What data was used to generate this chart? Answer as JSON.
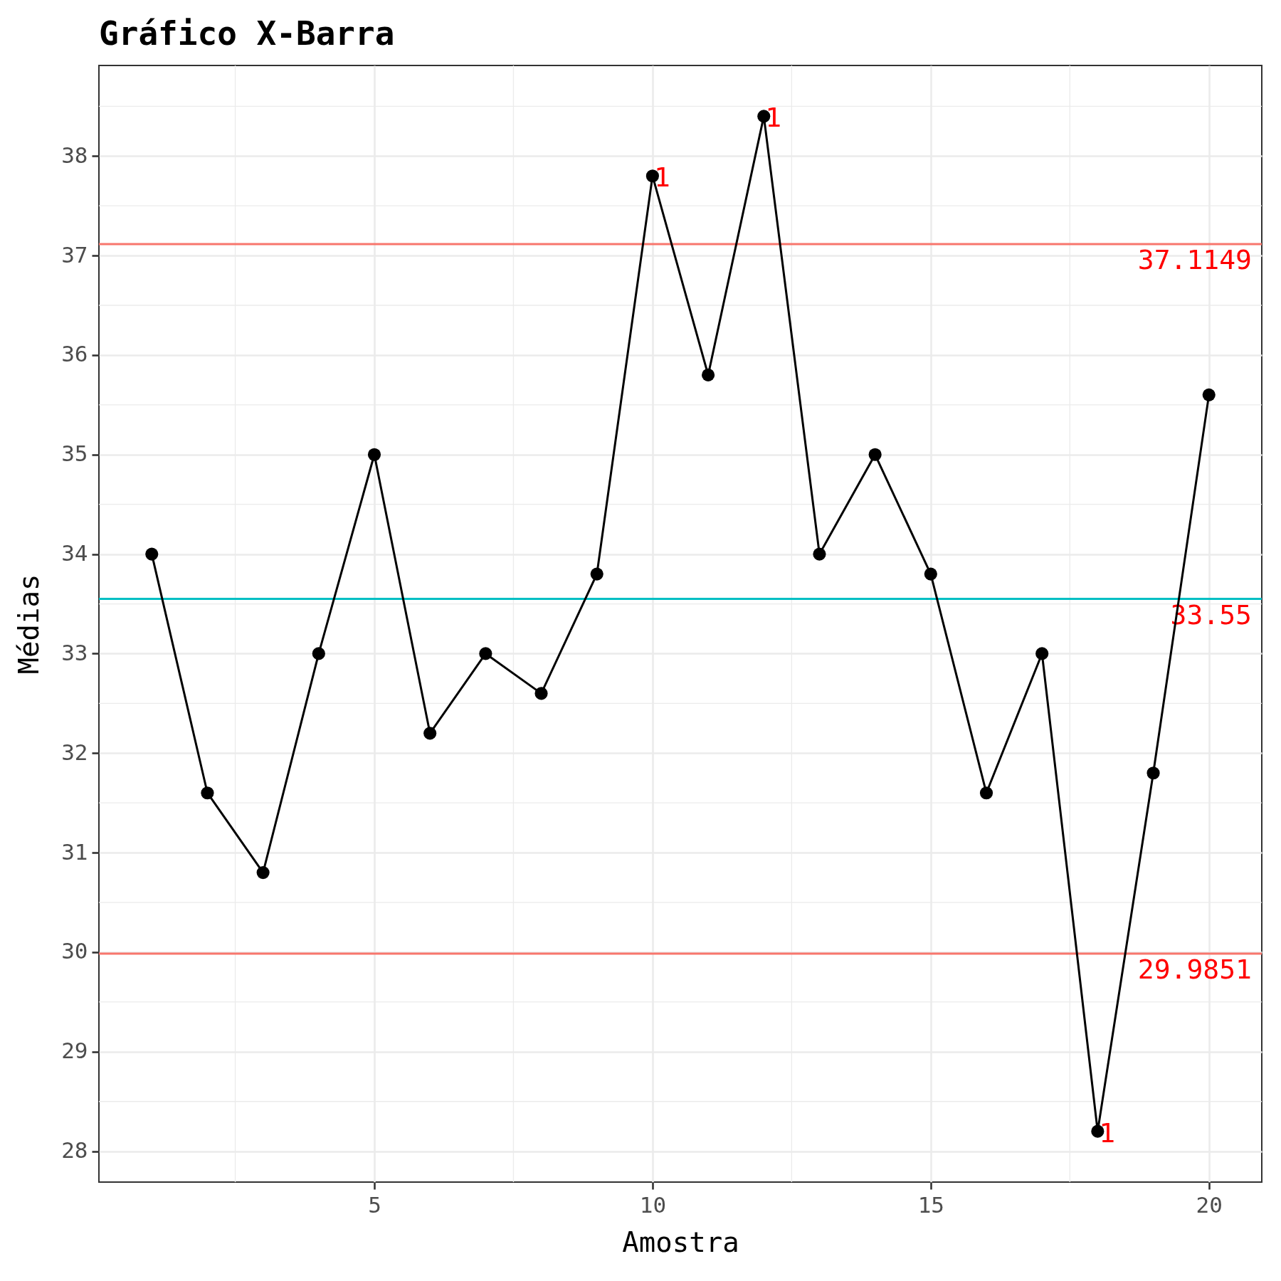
{
  "chart_data": {
    "type": "line",
    "title": "Gráfico X-Barra",
    "xlabel": "Amostra",
    "ylabel": "Médias",
    "x": [
      1,
      2,
      3,
      4,
      5,
      6,
      7,
      8,
      9,
      10,
      11,
      12,
      13,
      14,
      15,
      16,
      17,
      18,
      19,
      20
    ],
    "series": [
      {
        "color": "#000000",
        "values": [
          34.0,
          31.6,
          30.8,
          33.0,
          35.0,
          32.2,
          33.0,
          32.6,
          33.8,
          37.8,
          35.8,
          38.4,
          34.0,
          35.0,
          33.8,
          31.6,
          33.0,
          28.2,
          31.8,
          35.6
        ]
      }
    ],
    "xlim": [
      0.05,
      20.95
    ],
    "ylim": [
      27.69,
      38.91
    ],
    "xticks": [
      5,
      10,
      15,
      20
    ],
    "yticks": [
      28,
      29,
      30,
      31,
      32,
      33,
      34,
      35,
      36,
      37,
      38
    ],
    "grid": true,
    "marker": "circle",
    "line_style": "solid",
    "ref_lines": [
      {
        "axis": "y",
        "value": 37.1149,
        "label": "37.1149",
        "color": "#f8766d"
      },
      {
        "axis": "y",
        "value": 33.55,
        "label": "33.55",
        "color": "#00bfc4"
      },
      {
        "axis": "y",
        "value": 29.9851,
        "label": "29.9851",
        "color": "#f8766d"
      }
    ],
    "annotations": [
      {
        "text": "1",
        "x": 10,
        "y": 37.8
      },
      {
        "text": "1",
        "x": 12,
        "y": 38.4
      },
      {
        "text": "1",
        "x": 18,
        "y": 28.2
      }
    ]
  }
}
